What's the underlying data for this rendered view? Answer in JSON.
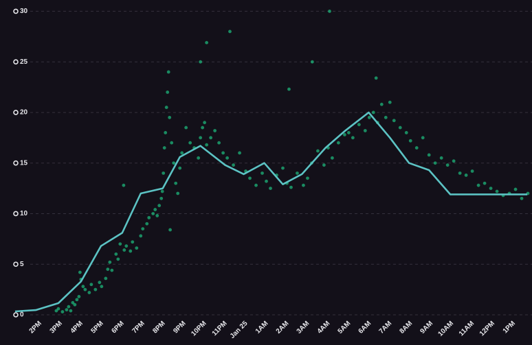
{
  "chart_data": {
    "type": "scatter-line",
    "xlim": [
      -1.2,
      24
    ],
    "ylim": [
      0,
      30.3
    ],
    "yticks": [
      0,
      5,
      10,
      15,
      20,
      25,
      30
    ],
    "xticks": [
      {
        "value": 0,
        "label": "2PM"
      },
      {
        "value": 1,
        "label": "3PM"
      },
      {
        "value": 2,
        "label": "4PM"
      },
      {
        "value": 3,
        "label": "5PM"
      },
      {
        "value": 4,
        "label": "6PM"
      },
      {
        "value": 5,
        "label": "7PM"
      },
      {
        "value": 6,
        "label": "8PM"
      },
      {
        "value": 7,
        "label": "9PM"
      },
      {
        "value": 8,
        "label": "10PM"
      },
      {
        "value": 9,
        "label": "11PM"
      },
      {
        "value": 10,
        "label": "Jan 25"
      },
      {
        "value": 11,
        "label": "1AM"
      },
      {
        "value": 12,
        "label": "2AM"
      },
      {
        "value": 13,
        "label": "3AM"
      },
      {
        "value": 14,
        "label": "4AM"
      },
      {
        "value": 15,
        "label": "5AM"
      },
      {
        "value": 16,
        "label": "6AM"
      },
      {
        "value": 17,
        "label": "7AM"
      },
      {
        "value": 18,
        "label": "8AM"
      },
      {
        "value": 19,
        "label": "9AM"
      },
      {
        "value": 20,
        "label": "10AM"
      },
      {
        "value": 21,
        "label": "11AM"
      },
      {
        "value": 22,
        "label": "12PM"
      },
      {
        "value": 23,
        "label": "1PM"
      }
    ],
    "grid": true,
    "scatter": {
      "color": "#1ed68e",
      "x": [
        0.9,
        1.0,
        1.2,
        1.4,
        1.5,
        1.6,
        1.7,
        1.8,
        1.9,
        2.0,
        2.05,
        2.1,
        2.2,
        2.3,
        2.5,
        2.6,
        2.8,
        3.0,
        3.1,
        3.3,
        3.4,
        3.5,
        3.6,
        3.8,
        3.9,
        4.0,
        4.2,
        4.3,
        4.5,
        4.6,
        4.8,
        5.0,
        5.1,
        5.3,
        5.4,
        5.6,
        5.7,
        5.8,
        5.9,
        6.0,
        6.05,
        6.1,
        6.15,
        6.2,
        6.25,
        6.3,
        6.35,
        6.4,
        6.5,
        6.6,
        6.7,
        6.8,
        6.9,
        7.0,
        7.2,
        7.4,
        7.6,
        7.8,
        7.9,
        8.0,
        8.1,
        8.2,
        8.4,
        8.6,
        8.8,
        9.0,
        9.2,
        9.5,
        9.8,
        10.1,
        10.3,
        10.6,
        10.9,
        11.1,
        11.3,
        11.6,
        11.9,
        12.1,
        12.3,
        12.6,
        12.9,
        13.1,
        13.3,
        13.6,
        13.9,
        14.1,
        14.3,
        14.6,
        14.9,
        15.1,
        15.3,
        15.6,
        15.9,
        16.1,
        16.3,
        16.5,
        16.7,
        16.9,
        17.1,
        17.3,
        17.6,
        17.9,
        18.1,
        18.4,
        18.7,
        19.0,
        19.3,
        19.6,
        19.9,
        20.2,
        20.5,
        20.8,
        21.1,
        21.4,
        21.7,
        22.0,
        22.3,
        22.6,
        22.9,
        23.2,
        23.5,
        23.8,
        7.9,
        8.2,
        9.33,
        14.17,
        13.33,
        12.2,
        16.43,
        4.17,
        6.43
      ],
      "y": [
        0.4,
        0.6,
        0.3,
        0.5,
        0.8,
        0.4,
        1.2,
        1.0,
        1.5,
        1.8,
        4.2,
        3.5,
        2.8,
        2.5,
        2.2,
        3.0,
        2.5,
        3.2,
        2.8,
        3.6,
        4.5,
        5.2,
        4.4,
        6.0,
        5.5,
        7.0,
        6.4,
        6.8,
        6.3,
        7.2,
        6.6,
        7.8,
        8.5,
        9.0,
        9.6,
        10.0,
        10.4,
        9.8,
        10.8,
        11.5,
        12.2,
        14.0,
        16.5,
        18.0,
        20.5,
        22.0,
        24.0,
        19.5,
        17.0,
        15.0,
        13.0,
        12.0,
        14.5,
        16.0,
        18.5,
        17.0,
        16.5,
        15.5,
        17.5,
        18.5,
        19.0,
        16.8,
        17.5,
        18.2,
        17.0,
        16.0,
        15.5,
        14.8,
        16.0,
        14.2,
        13.5,
        12.8,
        14.0,
        13.2,
        12.5,
        13.8,
        14.5,
        13.0,
        12.6,
        14.0,
        12.8,
        13.5,
        15.0,
        16.2,
        14.8,
        16.5,
        15.5,
        17.0,
        17.8,
        18.0,
        17.5,
        18.8,
        18.2,
        19.5,
        20.0,
        19.0,
        20.8,
        19.5,
        21.0,
        19.2,
        18.5,
        18.0,
        17.2,
        16.5,
        17.5,
        15.8,
        15.0,
        15.5,
        14.8,
        15.2,
        14.0,
        13.8,
        14.2,
        12.8,
        13.0,
        12.5,
        12.2,
        11.8,
        12.0,
        12.4,
        11.5,
        12.0,
        25.0,
        26.9,
        28.0,
        30.0,
        25.0,
        22.3,
        23.4,
        12.8,
        8.4
      ]
    },
    "line": {
      "color": "#5cc3c4",
      "x": [
        -1.1,
        -0.1,
        1.0,
        2.1,
        3.07,
        4.1,
        5.0,
        6.07,
        6.9,
        7.9,
        9.1,
        10.0,
        11.0,
        11.9,
        12.83,
        13.97,
        14.93,
        16.07,
        17.1,
        18.03,
        19.0,
        20.03,
        23.77
      ],
      "y": [
        0.34,
        0.47,
        1.15,
        3.3,
        6.8,
        8.1,
        12.0,
        12.5,
        15.6,
        16.7,
        14.8,
        13.9,
        15.0,
        12.9,
        13.9,
        16.5,
        18.2,
        20.0,
        17.5,
        15.0,
        14.3,
        11.9,
        11.9
      ]
    }
  }
}
